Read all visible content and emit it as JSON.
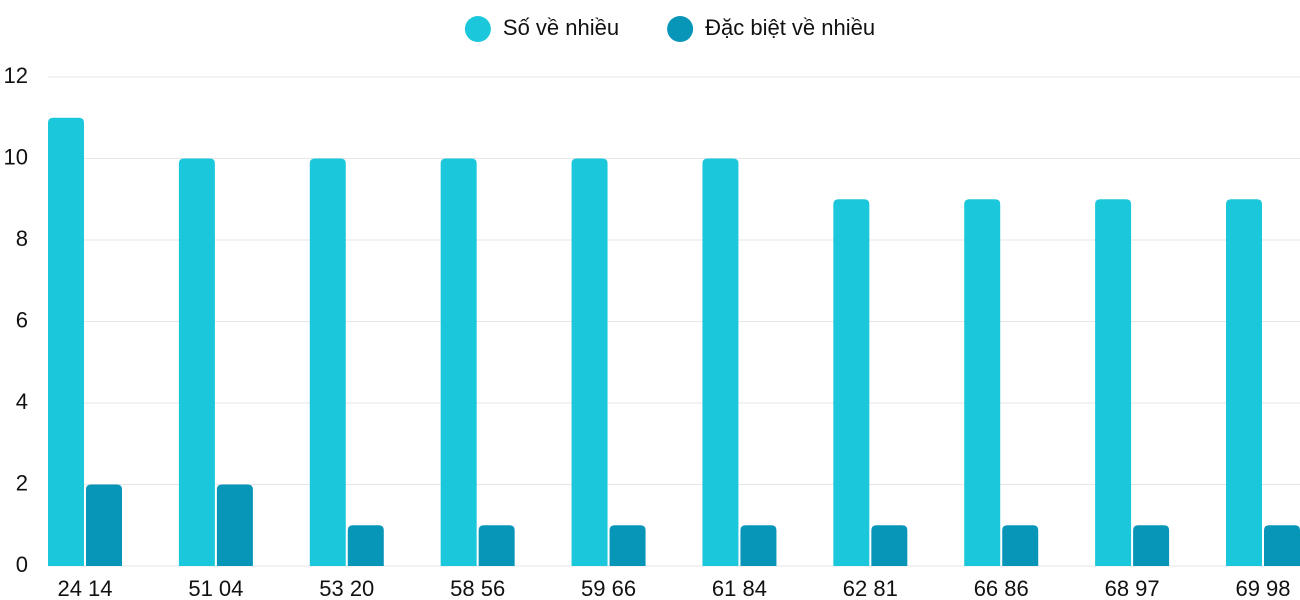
{
  "chart_data": {
    "type": "bar",
    "categories": [
      "24 14",
      "51 04",
      "53 20",
      "58 56",
      "59 66",
      "61 84",
      "62 81",
      "66 86",
      "68 97",
      "69 98"
    ],
    "series": [
      {
        "name": "Số về nhiều",
        "color": "#1bc8db",
        "values": [
          11,
          10,
          10,
          10,
          10,
          10,
          9,
          9,
          9,
          9
        ]
      },
      {
        "name": "Đặc biệt về nhiều",
        "color": "#0795b8",
        "values": [
          2,
          2,
          1,
          1,
          1,
          1,
          1,
          1,
          1,
          1
        ]
      }
    ],
    "ylim": [
      0,
      12
    ],
    "yticks": [
      0,
      2,
      4,
      6,
      8,
      10,
      12
    ],
    "grid": true,
    "legend": "top"
  }
}
